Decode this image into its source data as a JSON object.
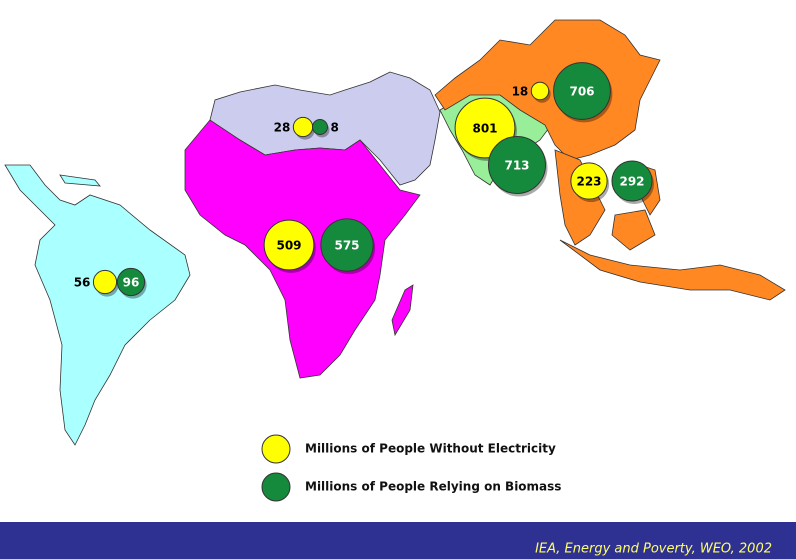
{
  "groups": [
    {
      "without_electricity": 56,
      "biomass": 96
    },
    {
      "without_electricity": 28,
      "biomass": 8
    },
    {
      "without_electricity": 509,
      "biomass": 575
    },
    {
      "without_electricity": 18,
      "biomass": 706
    },
    {
      "without_electricity": 801,
      "biomass": 713
    },
    {
      "without_electricity": 223,
      "biomass": 292
    }
  ],
  "legend": [
    {
      "label": "Millions of People Without Electricity",
      "color": "#ffff00"
    },
    {
      "label": "Millions of People Relying on Biomass",
      "color": "#168a3c"
    }
  ],
  "source": "IEA, Energy and Poverty, WEO, 2002"
}
